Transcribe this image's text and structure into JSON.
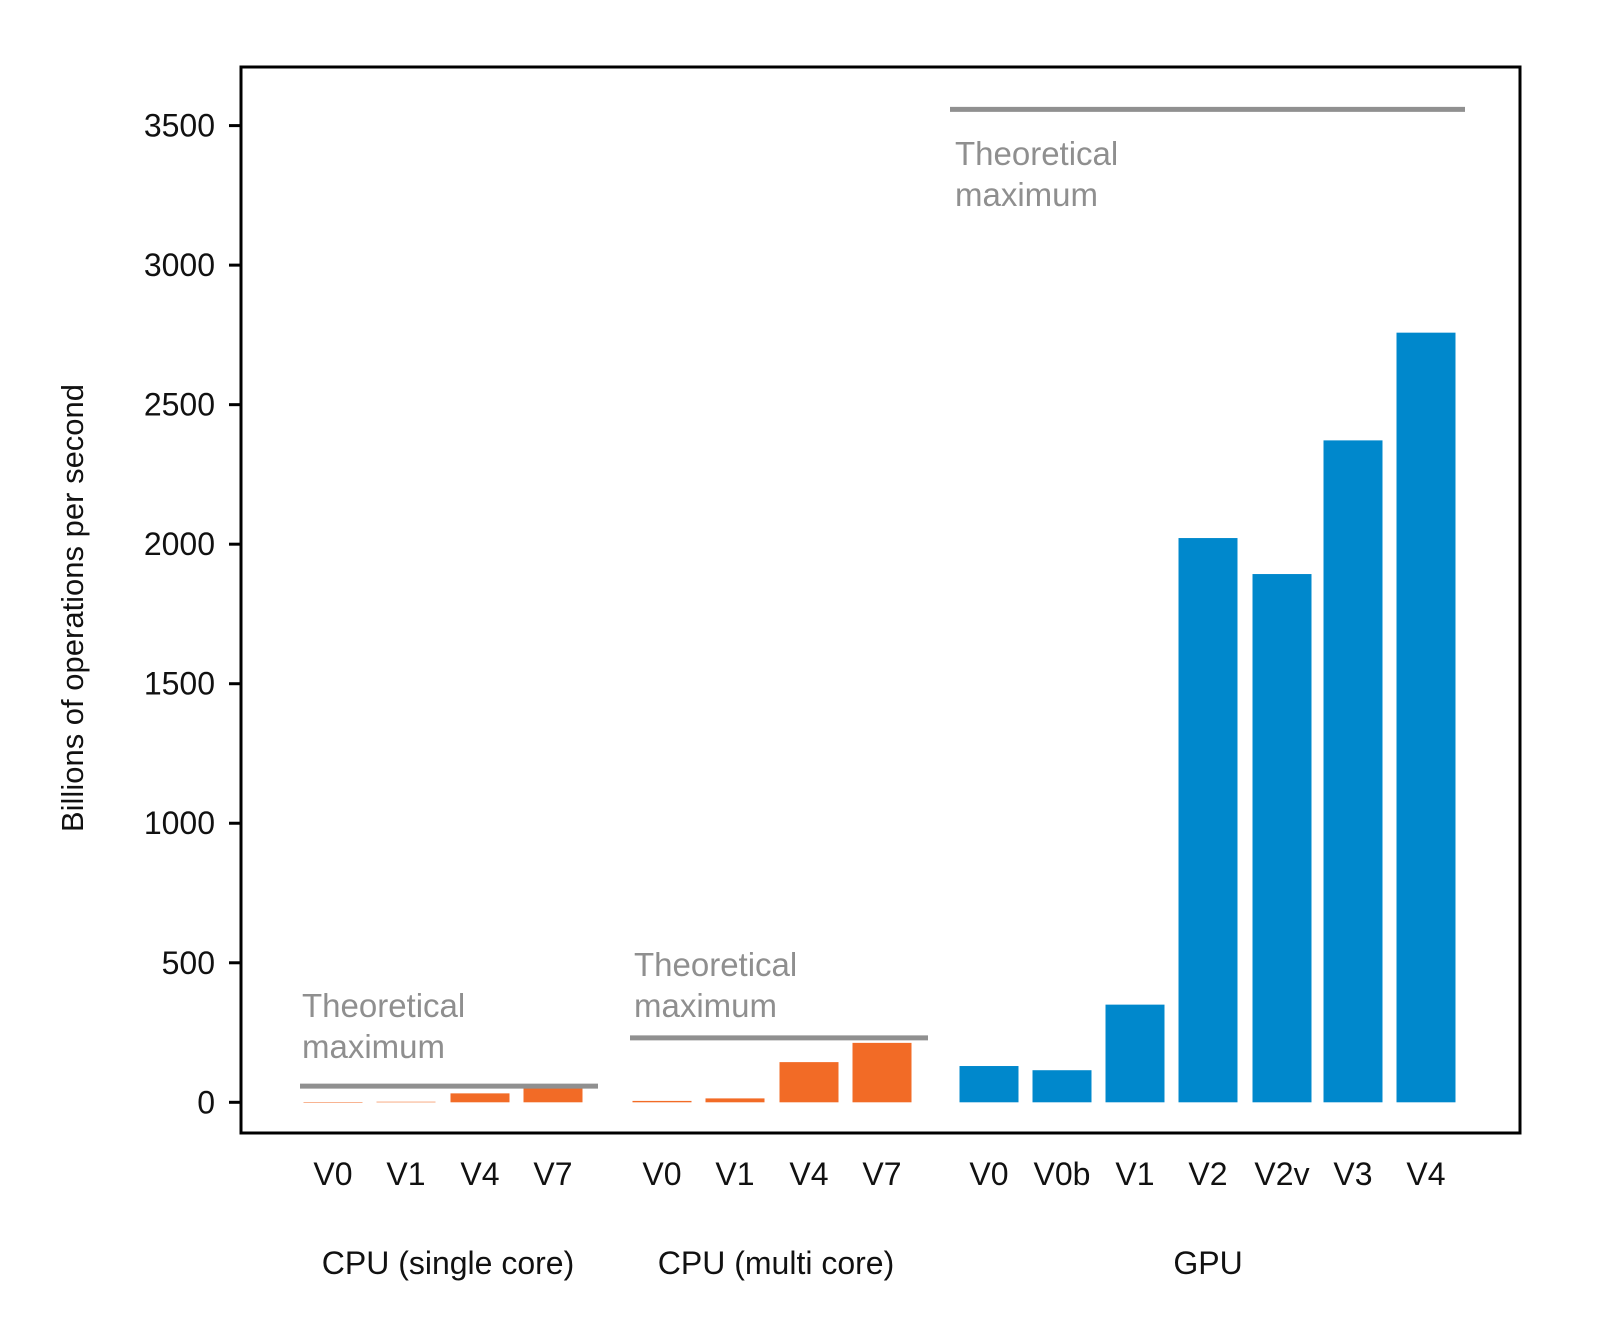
{
  "chart_data": {
    "type": "bar",
    "title": "",
    "xlabel": "",
    "ylabel": "Billions of operations per second",
    "ylim": [
      -110,
      3710
    ],
    "yticks": [
      0,
      500,
      1000,
      1500,
      2000,
      2500,
      3000,
      3500
    ],
    "ytick_labels": [
      "0",
      "500",
      "1000",
      "1500",
      "2000",
      "2500",
      "3000",
      "3500"
    ],
    "grid": false,
    "legend": "none",
    "groups": [
      {
        "name": "CPU (single core)",
        "color": "#f26b26",
        "categories": [
          "V0",
          "V1",
          "V4",
          "V7"
        ],
        "values": [
          1,
          2,
          32,
          52
        ],
        "theoretical_maximum": 58,
        "annotation": [
          "Theoretical",
          "maximum"
        ],
        "annotation_position": "above-line"
      },
      {
        "name": "CPU (multi core)",
        "color": "#f26b26",
        "categories": [
          "V0",
          "V1",
          "V4",
          "V7"
        ],
        "values": [
          5,
          14,
          144,
          213
        ],
        "theoretical_maximum": 231,
        "annotation": [
          "Theoretical",
          "maximum"
        ],
        "annotation_position": "above-line"
      },
      {
        "name": "GPU",
        "color": "#0088cc",
        "categories": [
          "V0",
          "V0b",
          "V1",
          "V2",
          "V2v",
          "V3",
          "V4"
        ],
        "values": [
          130,
          115,
          350,
          2022,
          1893,
          2372,
          2758
        ],
        "theoretical_maximum": 3558,
        "annotation": [
          "Theoretical",
          "maximum"
        ],
        "annotation_position": "below-line"
      }
    ],
    "reference_line_color": "#909090"
  }
}
